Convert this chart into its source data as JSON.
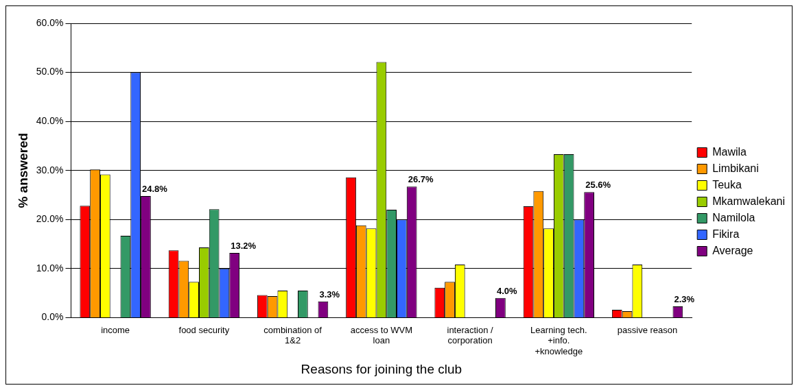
{
  "chart_data": {
    "type": "bar",
    "xlabel": "Reasons for joining the club",
    "ylabel": "% answered",
    "categories": [
      "income",
      "food security",
      "combination of 1&2",
      "access to WVM loan",
      "interaction / corporation",
      "Learning tech. +info. +knowledge",
      "passive reason"
    ],
    "series": [
      {
        "name": "Mawila",
        "color": "#ff0000",
        "values": [
          22.8,
          13.7,
          4.6,
          28.6,
          6.1,
          22.7,
          1.6
        ]
      },
      {
        "name": "Limbikani",
        "color": "#ff9900",
        "values": [
          30.2,
          11.6,
          4.4,
          18.8,
          7.3,
          25.8,
          1.3
        ]
      },
      {
        "name": "Teuka",
        "color": "#ffff00",
        "values": [
          29.2,
          7.3,
          5.5,
          18.2,
          10.8,
          18.2,
          10.8
        ]
      },
      {
        "name": "Mkamwalekani",
        "color": "#99cc00",
        "values": [
          null,
          14.3,
          null,
          52.1,
          null,
          33.3,
          null
        ]
      },
      {
        "name": "Namilola",
        "color": "#339966",
        "values": [
          16.7,
          22.1,
          5.5,
          22.0,
          null,
          33.3,
          null
        ]
      },
      {
        "name": "Fikira",
        "color": "#3366ff",
        "values": [
          50.0,
          10.0,
          null,
          20.0,
          null,
          20.0,
          null
        ]
      },
      {
        "name": "Average",
        "color": "#800080",
        "values": [
          24.8,
          13.2,
          3.3,
          26.7,
          4.0,
          25.6,
          2.3
        ],
        "value_labels": [
          "24.8%",
          "13.2%",
          "3.3%",
          "26.7%",
          "4.0%",
          "25.6%",
          "2.3%"
        ]
      }
    ],
    "ylim": [
      0,
      60
    ],
    "yticks": [
      {
        "value": 0,
        "label": "0.0%"
      },
      {
        "value": 10,
        "label": "10.0%"
      },
      {
        "value": 20,
        "label": "20.0%"
      },
      {
        "value": 30,
        "label": "30.0%"
      },
      {
        "value": 40,
        "label": "40.0%"
      },
      {
        "value": 50,
        "label": "50.0%"
      },
      {
        "value": 60,
        "label": "60.0%"
      }
    ],
    "grid": "y",
    "legend": "right"
  }
}
